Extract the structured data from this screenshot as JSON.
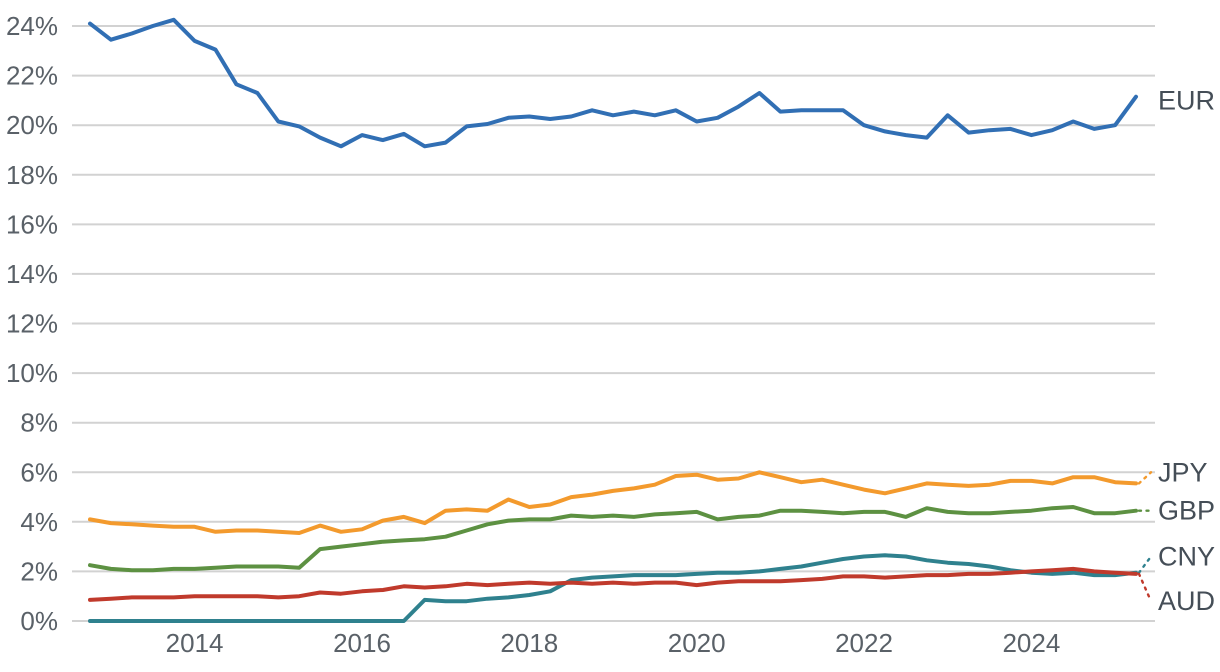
{
  "chart_data": {
    "type": "line",
    "title": "",
    "xlabel": "",
    "ylabel": "",
    "grid": "horizontal",
    "legend_position": "right-end-labels",
    "x_unit": "quarterly",
    "x_start": 2012.75,
    "x_step": 0.25,
    "x_end": 2025.25,
    "xlim": [
      2012.75,
      2025.25
    ],
    "ylim": [
      0,
      24.8
    ],
    "x_tick_values": [
      2014,
      2016,
      2018,
      2020,
      2022,
      2024
    ],
    "x_tick_labels": [
      "2014",
      "2016",
      "2018",
      "2020",
      "2022",
      "2024"
    ],
    "y_tick_values": [
      0,
      2,
      4,
      6,
      8,
      10,
      12,
      14,
      16,
      18,
      20,
      22,
      24
    ],
    "y_tick_labels": [
      "0%",
      "2%",
      "4%",
      "6%",
      "8%",
      "10%",
      "12%",
      "14%",
      "16%",
      "18%",
      "20%",
      "22%",
      "24%"
    ],
    "colors": {
      "grid": "#d2d2d2",
      "tick_text": "#5a6168",
      "label_text": "#454e57",
      "background": "#ffffff"
    },
    "series": [
      {
        "name": "EUR",
        "color": "#316fb4",
        "values": [
          24.1,
          23.45,
          23.7,
          24.0,
          24.25,
          23.4,
          23.05,
          21.65,
          21.3,
          20.15,
          19.95,
          19.5,
          19.15,
          19.6,
          19.4,
          19.65,
          19.15,
          19.3,
          19.95,
          20.05,
          20.3,
          20.35,
          20.25,
          20.35,
          20.6,
          20.4,
          20.55,
          20.4,
          20.6,
          20.15,
          20.3,
          20.75,
          21.3,
          20.55,
          20.6,
          20.6,
          20.6,
          20.0,
          19.75,
          19.6,
          19.5,
          20.4,
          19.7,
          19.8,
          19.85,
          19.6,
          19.8,
          20.15,
          19.85,
          20.0,
          21.15
        ]
      },
      {
        "name": "JPY",
        "color": "#f39a2d",
        "values": [
          4.1,
          3.95,
          3.9,
          3.85,
          3.8,
          3.8,
          3.6,
          3.65,
          3.65,
          3.6,
          3.55,
          3.85,
          3.6,
          3.7,
          4.05,
          4.2,
          3.95,
          4.45,
          4.5,
          4.45,
          4.9,
          4.6,
          4.7,
          5.0,
          5.1,
          5.25,
          5.35,
          5.5,
          5.85,
          5.9,
          5.7,
          5.75,
          6.0,
          5.8,
          5.6,
          5.7,
          5.5,
          5.3,
          5.15,
          5.35,
          5.55,
          5.5,
          5.45,
          5.5,
          5.65,
          5.65,
          5.55,
          5.8,
          5.8,
          5.6,
          5.55
        ]
      },
      {
        "name": "GBP",
        "color": "#5d9142",
        "values": [
          2.25,
          2.1,
          2.05,
          2.05,
          2.1,
          2.1,
          2.15,
          2.2,
          2.2,
          2.2,
          2.15,
          2.9,
          3.0,
          3.1,
          3.2,
          3.25,
          3.3,
          3.4,
          3.65,
          3.9,
          4.05,
          4.1,
          4.1,
          4.25,
          4.2,
          4.25,
          4.2,
          4.3,
          4.35,
          4.4,
          4.1,
          4.2,
          4.25,
          4.45,
          4.45,
          4.4,
          4.35,
          4.4,
          4.4,
          4.2,
          4.55,
          4.4,
          4.35,
          4.35,
          4.4,
          4.45,
          4.55,
          4.6,
          4.35,
          4.35,
          4.45
        ]
      },
      {
        "name": "CNY",
        "color": "#2f818e",
        "values": [
          0,
          0,
          0,
          0,
          0,
          0,
          0,
          0,
          0,
          0,
          0,
          0,
          0,
          0,
          0,
          0,
          0.85,
          0.8,
          0.8,
          0.9,
          0.95,
          1.05,
          1.2,
          1.65,
          1.75,
          1.8,
          1.85,
          1.85,
          1.85,
          1.9,
          1.95,
          1.95,
          2.0,
          2.1,
          2.2,
          2.35,
          2.5,
          2.6,
          2.65,
          2.6,
          2.45,
          2.35,
          2.3,
          2.2,
          2.05,
          1.95,
          1.9,
          1.95,
          1.85,
          1.85,
          1.95
        ]
      },
      {
        "name": "AUD",
        "color": "#c03a2c",
        "values": [
          0.85,
          0.9,
          0.95,
          0.95,
          0.95,
          1.0,
          1.0,
          1.0,
          1.0,
          0.95,
          1.0,
          1.15,
          1.1,
          1.2,
          1.25,
          1.4,
          1.35,
          1.4,
          1.5,
          1.45,
          1.5,
          1.55,
          1.5,
          1.55,
          1.5,
          1.55,
          1.5,
          1.55,
          1.55,
          1.45,
          1.55,
          1.6,
          1.6,
          1.6,
          1.65,
          1.7,
          1.8,
          1.8,
          1.75,
          1.8,
          1.85,
          1.85,
          1.9,
          1.9,
          1.95,
          2.0,
          2.05,
          2.1,
          2.0,
          1.95,
          1.9
        ]
      }
    ],
    "end_labels": [
      {
        "text": "EUR",
        "series": "EUR",
        "at_value": 21.0,
        "leader": false
      },
      {
        "text": "JPY",
        "series": "JPY",
        "at_value": 6.0,
        "leader": true
      },
      {
        "text": "GBP",
        "series": "GBP",
        "at_value": 4.45,
        "leader": true
      },
      {
        "text": "CNY",
        "series": "CNY",
        "at_value": 2.6,
        "leader": true
      },
      {
        "text": "AUD",
        "series": "AUD",
        "at_value": 0.8,
        "leader": true
      }
    ]
  }
}
